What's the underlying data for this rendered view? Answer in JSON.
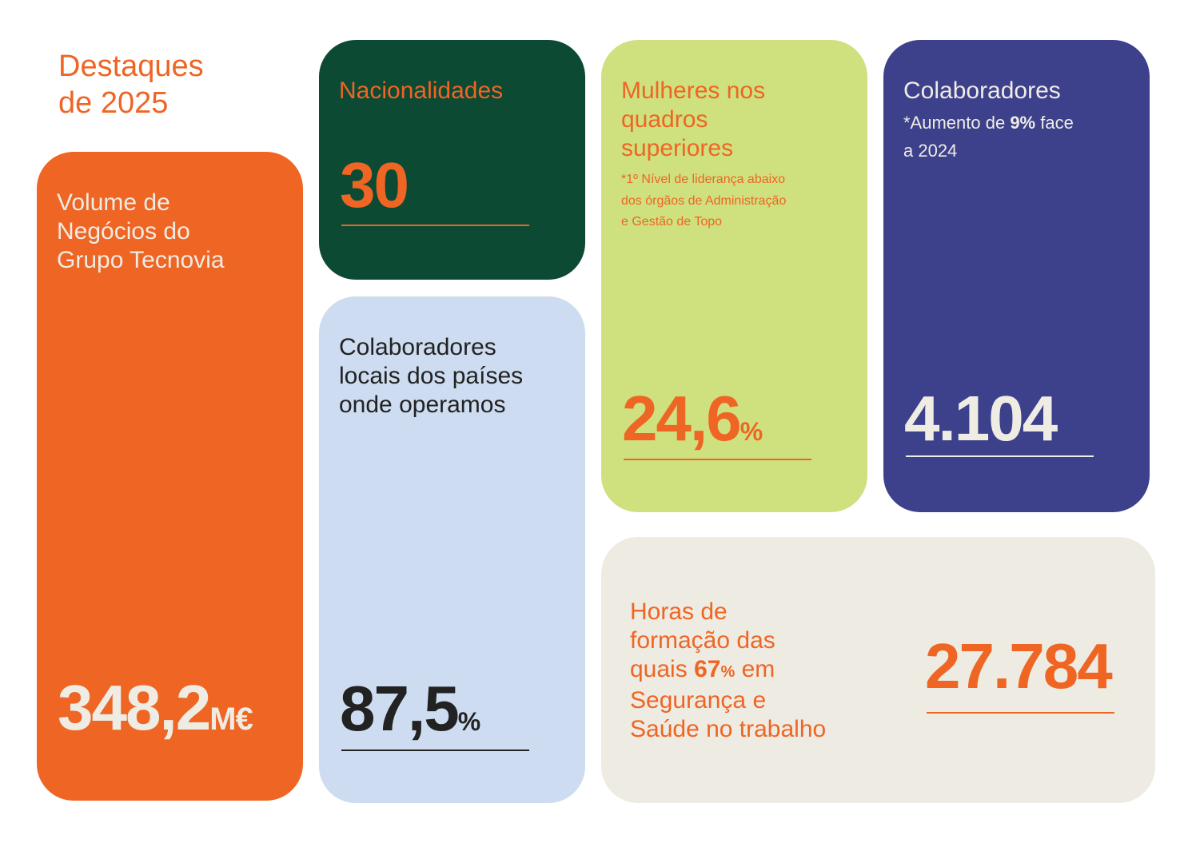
{
  "colors": {
    "orange": "#ef6524",
    "dark_green": "#0d4a33",
    "lime": "#cfe07e",
    "navy": "#3d418b",
    "light_blue": "#cddcf0",
    "beige": "#eeebe2",
    "cream_text": "#efece4",
    "black_text": "#222222"
  },
  "header": {
    "line1": "Destaques",
    "line2": "de 2025"
  },
  "cards": {
    "volume": {
      "label_lines": [
        "Volume de",
        "Negócios do",
        "Grupo Tecnovia"
      ],
      "value": "348,2",
      "unit": "M€"
    },
    "nationalities": {
      "label": "Nacionalidades",
      "value": "30"
    },
    "women": {
      "label_lines": [
        "Mulheres nos",
        "quadros",
        "superiores"
      ],
      "note_lines": [
        "*1º Nível de liderança abaixo",
        "dos órgãos de Administração",
        "e Gestão de Topo"
      ],
      "value": "24,6",
      "unit": "%"
    },
    "employees": {
      "label": "Colaboradores",
      "note_prefix": "*Aumento de ",
      "note_bold": "9%",
      "note_suffix": " face",
      "note_line2": "a 2024",
      "value": "4.104"
    },
    "local": {
      "label_lines": [
        "Colaboradores",
        "locais dos países",
        "onde operamos"
      ],
      "value": "87,5",
      "unit": "%"
    },
    "training": {
      "label_lines": [
        "Horas de",
        "formação das"
      ],
      "line3_prefix": "quais ",
      "line3_bold": "67",
      "line3_unit": "%",
      "line3_suffix": " em",
      "label_lines_end": [
        "Segurança e",
        "Saúde no trabalho"
      ],
      "value": "27.784"
    }
  }
}
